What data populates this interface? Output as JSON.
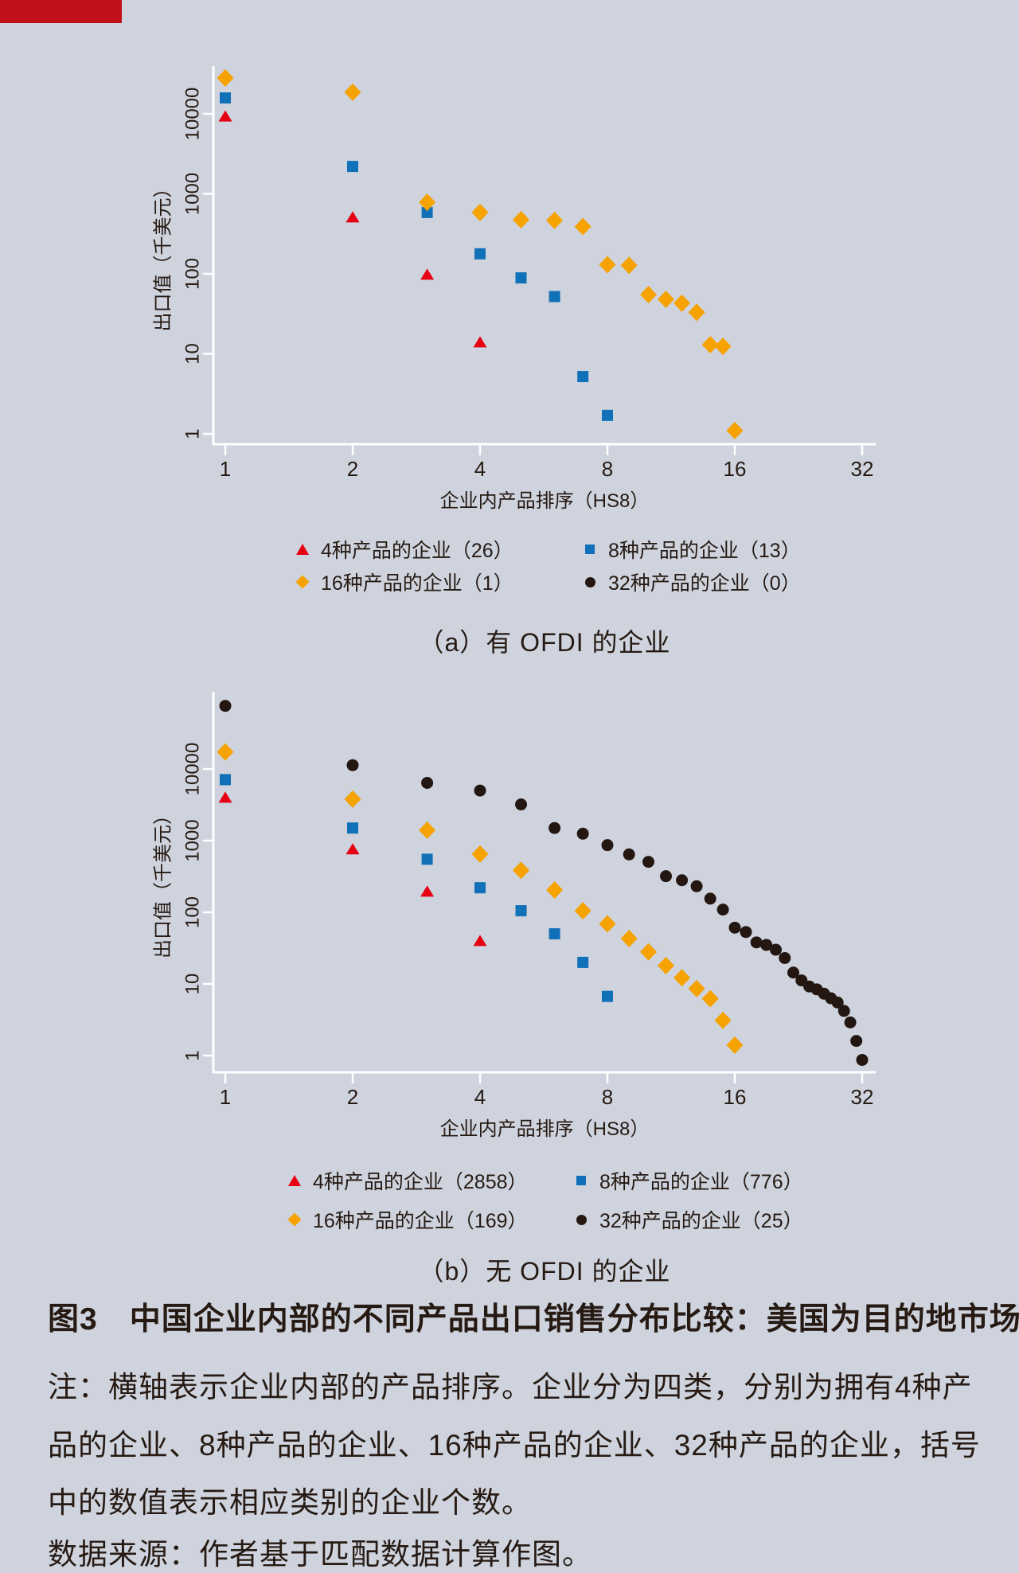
{
  "page": {
    "background": "#ced3dd",
    "text_color": "#261a13",
    "axis_color": "#ffffff",
    "accent_bar_color": "#c01119"
  },
  "chart_data": [
    {
      "id": "a",
      "type": "scatter",
      "panel_title": "（a）有 OFDI 的企业",
      "xlabel": "企业内产品排序（HS8）",
      "ylabel": "出口值（千美元）",
      "x_scale": "log2",
      "y_scale": "log10",
      "x_ticks": [
        1,
        2,
        4,
        8,
        16,
        32
      ],
      "y_ticks": [
        10000,
        1000,
        100,
        10,
        1
      ],
      "xlim": [
        1,
        32
      ],
      "ylim": [
        0.55,
        60000
      ],
      "grid": false,
      "legend_position": "below",
      "legend": [
        {
          "marker": "triangle",
          "color": "#e60012",
          "label": "4种产品的企业（26）"
        },
        {
          "marker": "square",
          "color": "#1070b8",
          "label": "8种产品的企业（13）"
        },
        {
          "marker": "diamond",
          "color": "#f6a200",
          "label": "16种产品的企业（1）"
        },
        {
          "marker": "circle",
          "color": "#241712",
          "label": "32种产品的企业（0）"
        }
      ],
      "series": [
        {
          "name": "4种产品的企业",
          "marker": "triangle",
          "color": "#e60012",
          "points": [
            [
              1,
              9300
            ],
            [
              2,
              510
            ],
            [
              3,
              98
            ],
            [
              4,
              14
            ]
          ]
        },
        {
          "name": "8种产品的企业",
          "marker": "square",
          "color": "#1070b8",
          "points": [
            [
              1,
              15800
            ],
            [
              2,
              2200
            ],
            [
              3,
              585
            ],
            [
              4,
              178
            ],
            [
              5,
              89
            ],
            [
              6,
              52
            ],
            [
              7,
              5.2
            ],
            [
              8,
              1.7
            ]
          ]
        },
        {
          "name": "16种产品的企业",
          "marker": "diamond",
          "color": "#f6a200",
          "points": [
            [
              1,
              28000
            ],
            [
              2,
              18600
            ],
            [
              3,
              785
            ],
            [
              4,
              585
            ],
            [
              5,
              475
            ],
            [
              6,
              465
            ],
            [
              7,
              390
            ],
            [
              8,
              130
            ],
            [
              9,
              128
            ],
            [
              10,
              55
            ],
            [
              11,
              48
            ],
            [
              12,
              43
            ],
            [
              13,
              33
            ],
            [
              14,
              13
            ],
            [
              15,
              12.4
            ],
            [
              16,
              1.1
            ]
          ]
        },
        {
          "name": "32种产品的企业",
          "marker": "circle",
          "color": "#241712",
          "points": []
        }
      ]
    },
    {
      "id": "b",
      "type": "scatter",
      "panel_title": "（b）无 OFDI 的企业",
      "xlabel": "企业内产品排序（HS8）",
      "ylabel": "出口值（千美元）",
      "x_scale": "log2",
      "y_scale": "log10",
      "x_ticks": [
        1,
        2,
        4,
        8,
        16,
        32
      ],
      "y_ticks": [
        10000,
        1000,
        100,
        10,
        1
      ],
      "xlim": [
        1,
        32
      ],
      "ylim": [
        0.55,
        100000
      ],
      "grid": false,
      "legend_position": "below",
      "legend": [
        {
          "marker": "triangle",
          "color": "#e60012",
          "label": "4种产品的企业（2858）"
        },
        {
          "marker": "square",
          "color": "#1070b8",
          "label": "8种产品的企业（776）"
        },
        {
          "marker": "diamond",
          "color": "#f6a200",
          "label": "16种产品的企业（169）"
        },
        {
          "marker": "circle",
          "color": "#241712",
          "label": "32种产品的企业（25）"
        }
      ],
      "series": [
        {
          "name": "4种产品的企业",
          "marker": "triangle",
          "color": "#e60012",
          "points": [
            [
              1,
              4000
            ],
            [
              2,
              760
            ],
            [
              3,
              195
            ],
            [
              4,
              40
            ]
          ]
        },
        {
          "name": "8种产品的企业",
          "marker": "square",
          "color": "#1070b8",
          "points": [
            [
              1,
              7100
            ],
            [
              2,
              1500
            ],
            [
              3,
              550
            ],
            [
              4,
              220
            ],
            [
              5,
              105
            ],
            [
              6,
              50
            ],
            [
              7,
              20
            ],
            [
              8,
              6.7
            ]
          ]
        },
        {
          "name": "16种产品的企业",
          "marker": "diamond",
          "color": "#f6a200",
          "points": [
            [
              1,
              17300
            ],
            [
              2,
              3800
            ],
            [
              3,
              1400
            ],
            [
              4,
              650
            ],
            [
              5,
              385
            ],
            [
              6,
              205
            ],
            [
              7,
              105
            ],
            [
              8,
              69
            ],
            [
              9,
              43
            ],
            [
              10,
              28
            ],
            [
              11,
              18
            ],
            [
              12,
              12.2
            ],
            [
              13,
              8.6
            ],
            [
              14,
              6.2
            ],
            [
              15,
              3.1
            ],
            [
              16,
              1.4
            ]
          ]
        },
        {
          "name": "32种产品的企业",
          "marker": "circle",
          "color": "#241712",
          "points": [
            [
              1,
              76000
            ],
            [
              2,
              11300
            ],
            [
              3,
              6400
            ],
            [
              4,
              5000
            ],
            [
              5,
              3200
            ],
            [
              6,
              1500
            ],
            [
              7,
              1250
            ],
            [
              8,
              865
            ],
            [
              9,
              643
            ],
            [
              10,
              506
            ],
            [
              11,
              319
            ],
            [
              12,
              280
            ],
            [
              13,
              231
            ],
            [
              14,
              155
            ],
            [
              15,
              109
            ],
            [
              16,
              61
            ],
            [
              17,
              53
            ],
            [
              18,
              38
            ],
            [
              19,
              35
            ],
            [
              20,
              30
            ],
            [
              21,
              23
            ],
            [
              22,
              14.4
            ],
            [
              23,
              11.2
            ],
            [
              24,
              9.2
            ],
            [
              25,
              8.4
            ],
            [
              26,
              7.3
            ],
            [
              27,
              6.3
            ],
            [
              28,
              5.5
            ],
            [
              29,
              4.2
            ],
            [
              30,
              2.9
            ],
            [
              31,
              1.6
            ],
            [
              32,
              0.87
            ]
          ]
        }
      ]
    }
  ],
  "figure_caption": {
    "title": "图3　中国企业内部的不同产品出口销售分布比较：美国为目的地市场",
    "note_lines": [
      "注：横轴表示企业内部的产品排序。企业分为四类，分别为拥有4种产",
      "品的企业、8种产品的企业、16种产品的企业、32种产品的企业，括号",
      "中的数值表示相应类别的企业个数。"
    ],
    "source": "数据来源：作者基于匹配数据计算作图。"
  }
}
